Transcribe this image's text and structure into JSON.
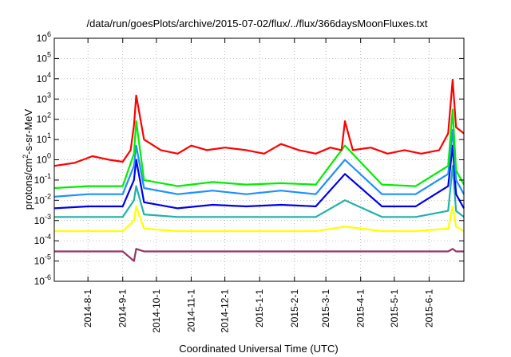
{
  "chart_data": {
    "type": "line",
    "title": "/data/run/goesPlots/archive/2015-07-02/flux/../flux/366daysMoonFluxes.txt",
    "xlabel": "Coordinated Universal Time (UTC)",
    "ylabel": "protons/cm2-s-sr-MeV",
    "yscale": "log",
    "ylim": [
      1e-06,
      1000000.0
    ],
    "xlim": [
      "2014-07-02",
      "2015-07-02"
    ],
    "grid": true,
    "legend": "none",
    "y_ticks": [
      {
        "value": 1e-06,
        "base": "10",
        "exp": "-6"
      },
      {
        "value": 1e-05,
        "base": "10",
        "exp": "-5"
      },
      {
        "value": 0.0001,
        "base": "10",
        "exp": "-4"
      },
      {
        "value": 0.001,
        "base": "10",
        "exp": "-3"
      },
      {
        "value": 0.01,
        "base": "10",
        "exp": "-2"
      },
      {
        "value": 0.1,
        "base": "10",
        "exp": "-1"
      },
      {
        "value": 1,
        "base": "10",
        "exp": "0"
      },
      {
        "value": 10,
        "base": "10",
        "exp": "1"
      },
      {
        "value": 100,
        "base": "10",
        "exp": "2"
      },
      {
        "value": 1000,
        "base": "10",
        "exp": "3"
      },
      {
        "value": 10000,
        "base": "10",
        "exp": "4"
      },
      {
        "value": 100000,
        "base": "10",
        "exp": "5"
      },
      {
        "value": 1000000,
        "base": "10",
        "exp": "6"
      }
    ],
    "x_ticks": [
      "2014-8-1",
      "2014-9-1",
      "2014-10-1",
      "2014-11-1",
      "2014-12-1",
      "2015-1-1",
      "2015-2-1",
      "2015-3-1",
      "2015-4-1",
      "2015-5-1",
      "2015-6-1"
    ],
    "x_tick_dates": [
      "2014-08-01",
      "2014-09-01",
      "2014-10-01",
      "2014-11-01",
      "2014-12-01",
      "2015-01-01",
      "2015-02-01",
      "2015-03-01",
      "2015-04-01",
      "2015-05-01",
      "2015-06-01"
    ],
    "series": [
      {
        "color": "#ff0000",
        "x": [
          "2014-07-02",
          "2014-07-20",
          "2014-08-05",
          "2014-08-20",
          "2014-09-01",
          "2014-09-08",
          "2014-09-11",
          "2014-09-13",
          "2014-09-20",
          "2014-10-05",
          "2014-10-20",
          "2014-11-01",
          "2014-11-15",
          "2014-12-01",
          "2014-12-20",
          "2015-01-05",
          "2015-01-20",
          "2015-02-05",
          "2015-02-20",
          "2015-03-05",
          "2015-03-15",
          "2015-03-18",
          "2015-03-25",
          "2015-04-10",
          "2015-04-25",
          "2015-05-10",
          "2015-05-25",
          "2015-06-10",
          "2015-06-18",
          "2015-06-22",
          "2015-06-25",
          "2015-07-02"
        ],
        "values": [
          0.5,
          0.7,
          1.5,
          1.0,
          0.8,
          3,
          50,
          1500.0,
          10,
          3,
          2,
          5,
          3,
          4,
          3,
          2,
          6,
          3,
          2,
          4,
          3,
          80,
          3,
          4,
          2,
          3,
          2,
          3,
          20,
          9000.0,
          40,
          20
        ]
      },
      {
        "color": "#00ee00",
        "x": [
          "2014-07-02",
          "2014-08-01",
          "2014-09-01",
          "2014-09-11",
          "2014-09-13",
          "2014-09-20",
          "2014-10-20",
          "2014-11-20",
          "2014-12-20",
          "2015-01-20",
          "2015-02-20",
          "2015-03-18",
          "2015-04-20",
          "2015-05-20",
          "2015-06-18",
          "2015-06-22",
          "2015-06-25",
          "2015-07-02"
        ],
        "values": [
          0.04,
          0.05,
          0.05,
          2,
          80,
          0.1,
          0.05,
          0.08,
          0.06,
          0.07,
          0.06,
          5,
          0.06,
          0.05,
          0.5,
          300,
          0.3,
          0.06
        ]
      },
      {
        "color": "#1e90ff",
        "x": [
          "2014-07-02",
          "2014-08-01",
          "2014-09-01",
          "2014-09-11",
          "2014-09-13",
          "2014-09-20",
          "2014-10-20",
          "2014-11-20",
          "2014-12-20",
          "2015-01-20",
          "2015-02-20",
          "2015-03-18",
          "2015-04-20",
          "2015-05-20",
          "2015-06-18",
          "2015-06-22",
          "2015-06-25",
          "2015-07-02"
        ],
        "values": [
          0.015,
          0.02,
          0.02,
          0.5,
          5,
          0.04,
          0.02,
          0.03,
          0.02,
          0.03,
          0.02,
          1,
          0.02,
          0.02,
          0.2,
          30,
          0.1,
          0.02
        ]
      },
      {
        "color": "#0000ee",
        "x": [
          "2014-07-02",
          "2014-08-01",
          "2014-09-01",
          "2014-09-11",
          "2014-09-13",
          "2014-09-20",
          "2014-10-20",
          "2014-11-20",
          "2014-12-20",
          "2015-01-20",
          "2015-02-20",
          "2015-03-18",
          "2015-04-20",
          "2015-05-20",
          "2015-06-18",
          "2015-06-22",
          "2015-06-25",
          "2015-07-02"
        ],
        "values": [
          0.004,
          0.005,
          0.005,
          0.1,
          1,
          0.008,
          0.004,
          0.006,
          0.005,
          0.006,
          0.005,
          0.2,
          0.005,
          0.005,
          0.05,
          5,
          0.02,
          0.004
        ]
      },
      {
        "color": "#20b2aa",
        "x": [
          "2014-07-02",
          "2014-08-01",
          "2014-09-01",
          "2014-09-11",
          "2014-09-13",
          "2014-09-20",
          "2014-10-20",
          "2014-11-20",
          "2014-12-20",
          "2015-01-20",
          "2015-02-20",
          "2015-03-18",
          "2015-04-20",
          "2015-05-20",
          "2015-06-18",
          "2015-06-22",
          "2015-06-25",
          "2015-07-02"
        ],
        "values": [
          0.0015,
          0.0015,
          0.0015,
          0.01,
          0.05,
          0.002,
          0.0015,
          0.0015,
          0.0015,
          0.0015,
          0.0015,
          0.01,
          0.0015,
          0.0015,
          0.003,
          0.5,
          0.003,
          0.0015
        ]
      },
      {
        "color": "#ffff00",
        "x": [
          "2014-07-02",
          "2014-08-01",
          "2014-09-01",
          "2014-09-11",
          "2014-09-13",
          "2014-09-20",
          "2014-10-20",
          "2014-11-20",
          "2014-12-20",
          "2015-01-20",
          "2015-02-20",
          "2015-03-18",
          "2015-04-20",
          "2015-05-20",
          "2015-06-18",
          "2015-06-22",
          "2015-06-25",
          "2015-07-02"
        ],
        "values": [
          0.0003,
          0.0003,
          0.0003,
          0.001,
          0.005,
          0.0004,
          0.0003,
          0.0003,
          0.0003,
          0.0003,
          0.0003,
          0.0005,
          0.0003,
          0.0003,
          0.0004,
          0.005,
          0.0005,
          0.0003
        ]
      },
      {
        "color": "#993366",
        "x": [
          "2014-07-02",
          "2014-08-01",
          "2014-09-01",
          "2014-09-11",
          "2014-09-13",
          "2014-09-20",
          "2014-10-20",
          "2014-11-20",
          "2014-12-20",
          "2015-01-20",
          "2015-02-20",
          "2015-03-18",
          "2015-04-20",
          "2015-05-20",
          "2015-06-18",
          "2015-06-22",
          "2015-06-25",
          "2015-07-02"
        ],
        "values": [
          3e-05,
          3e-05,
          3e-05,
          1e-05,
          4e-05,
          3e-05,
          3e-05,
          3e-05,
          3e-05,
          3e-05,
          3e-05,
          3e-05,
          3e-05,
          3e-05,
          3e-05,
          4e-05,
          3e-05,
          3e-05
        ]
      }
    ]
  }
}
